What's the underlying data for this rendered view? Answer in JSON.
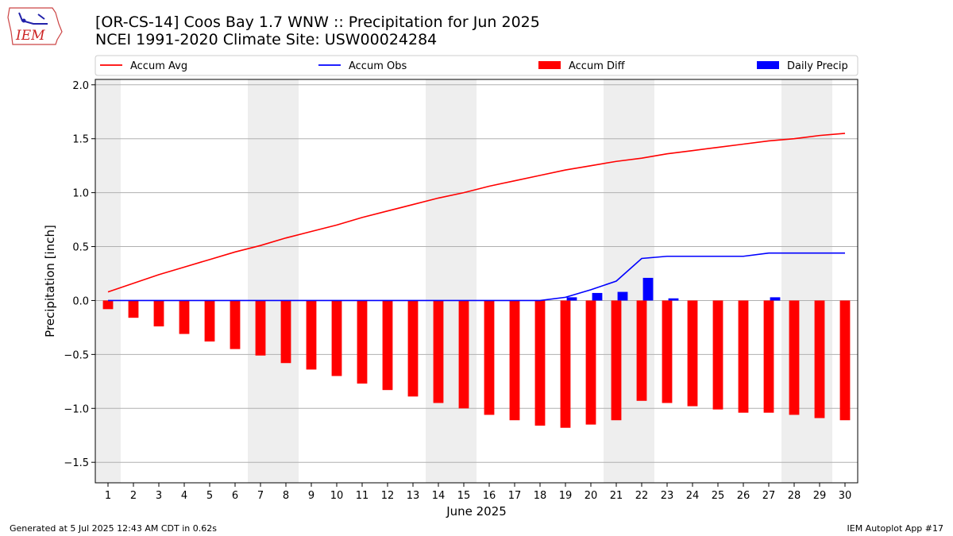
{
  "header": {
    "title_line1": "[OR-CS-14] Coos Bay 1.7 WNW :: Precipitation for Jun 2025",
    "title_line2": "NCEI 1991-2020 Climate Site: USW00024284",
    "logo_text": "IEM"
  },
  "footer": {
    "left": "Generated at 5 Jul 2025 12:43 AM CDT in 0.62s",
    "right": "IEM Autoplot App #17"
  },
  "colors": {
    "accum_avg": "#ff0000",
    "accum_obs": "#0000ff",
    "accum_diff": "#ff0000",
    "daily_precip": "#0000ff",
    "weekend_shade": "#eeeeee",
    "grid": "#b0b0b0"
  },
  "chart_data": {
    "type": "bar",
    "xlabel": "June 2025",
    "ylabel": "Precipitation [inch]",
    "ylim": [
      -1.69,
      2.05
    ],
    "yticks": [
      -1.5,
      -1.0,
      -0.5,
      0.0,
      0.5,
      1.0,
      1.5,
      2.0
    ],
    "ytick_labels": [
      "−1.5",
      "−1.0",
      "−0.5",
      "0.0",
      "0.5",
      "1.0",
      "1.5",
      "2.0"
    ],
    "x": [
      1,
      2,
      3,
      4,
      5,
      6,
      7,
      8,
      9,
      10,
      11,
      12,
      13,
      14,
      15,
      16,
      17,
      18,
      19,
      20,
      21,
      22,
      23,
      24,
      25,
      26,
      27,
      28,
      29,
      30
    ],
    "xlim": [
      0.5,
      30.5
    ],
    "grid": "horizontal",
    "legend_placement": "top",
    "weekend_ranges": [
      [
        0.5,
        1.5
      ],
      [
        6.5,
        8.5
      ],
      [
        13.5,
        15.5
      ],
      [
        20.5,
        22.5
      ],
      [
        27.5,
        29.5
      ]
    ],
    "series": [
      {
        "name": "Accum Avg",
        "kind": "line",
        "values": [
          0.08,
          0.16,
          0.24,
          0.31,
          0.38,
          0.45,
          0.51,
          0.58,
          0.64,
          0.7,
          0.77,
          0.83,
          0.89,
          0.95,
          1.0,
          1.06,
          1.11,
          1.16,
          1.21,
          1.25,
          1.29,
          1.32,
          1.36,
          1.39,
          1.42,
          1.45,
          1.48,
          1.5,
          1.53,
          1.55
        ]
      },
      {
        "name": "Accum Obs",
        "kind": "line",
        "values": [
          0,
          0,
          0,
          0,
          0,
          0,
          0,
          0,
          0,
          0,
          0,
          0,
          0,
          0,
          0,
          0,
          0,
          0,
          0.03,
          0.1,
          0.18,
          0.39,
          0.41,
          0.41,
          0.41,
          0.41,
          0.44,
          0.44,
          0.44,
          0.44
        ]
      },
      {
        "name": "Accum Diff",
        "kind": "bar",
        "values": [
          -0.08,
          -0.16,
          -0.24,
          -0.31,
          -0.38,
          -0.45,
          -0.51,
          -0.58,
          -0.64,
          -0.7,
          -0.77,
          -0.83,
          -0.89,
          -0.95,
          -1.0,
          -1.06,
          -1.11,
          -1.16,
          -1.18,
          -1.15,
          -1.11,
          -0.93,
          -0.95,
          -0.98,
          -1.01,
          -1.04,
          -1.04,
          -1.06,
          -1.09,
          -1.11
        ]
      },
      {
        "name": "Daily Precip",
        "kind": "bar",
        "values": [
          0,
          0,
          0,
          0,
          0,
          0,
          0,
          0,
          0,
          0,
          0,
          0,
          0,
          0,
          0,
          0,
          0,
          0,
          0.03,
          0.07,
          0.08,
          0.21,
          0.02,
          0,
          0,
          0,
          0.03,
          0,
          0,
          0
        ]
      }
    ]
  }
}
